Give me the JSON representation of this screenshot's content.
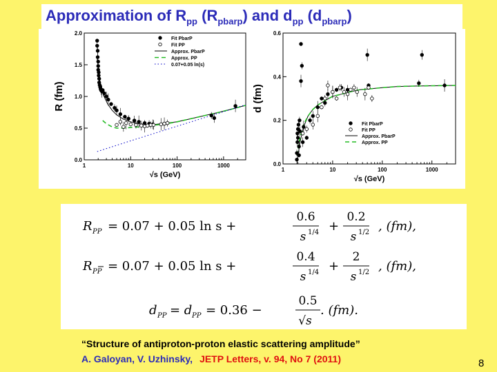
{
  "slide": {
    "title_prefix": "Approximation of R",
    "title_sub1": "pp",
    "title_mid1": " (R",
    "title_sub2": "pbarp",
    "title_mid2": ") and  d",
    "title_sub3": "pp",
    "title_mid3": " (d",
    "title_sub4": "pbarp",
    "title_end": ")",
    "caption": "“Structure of antiproton-proton elastic scattering amplitude”",
    "authors": "A. Galoyan, V. Uzhinsky,",
    "journal": "JETP Letters, v. 94, No 7 (2011)",
    "page_number": "8",
    "colors": {
      "background": "#fdf46b",
      "title": "#2b2bb8",
      "journal": "#e01010",
      "approx_pp": "#22bb22"
    }
  },
  "chart_data": [
    {
      "type": "scatter",
      "ylabel": "R (fm)",
      "xlabel": "√s  (GeV)",
      "x_scale": "log",
      "xlim": [
        1,
        3000
      ],
      "ylim": [
        0,
        2.0
      ],
      "x_ticks": [
        "1",
        "10",
        "100",
        "1000"
      ],
      "y_ticks": [
        "0.0",
        "0.5",
        "1.0",
        "1.5",
        "2.0"
      ],
      "legend_position": "top-right",
      "legend": [
        "Fit PbarP",
        "Fit PP",
        "Approx. PbarP",
        "Approx. PP",
        "0.07+0.05 ln(s)"
      ],
      "series": [
        {
          "name": "Fit PbarP",
          "marker": "filled-circle",
          "points": [
            [
              1.9,
              1.88
            ],
            [
              1.9,
              1.8
            ],
            [
              1.95,
              1.72
            ],
            [
              1.95,
              1.62
            ],
            [
              2.0,
              1.55
            ],
            [
              2.0,
              1.48
            ],
            [
              2.0,
              1.42
            ],
            [
              2.05,
              1.38
            ],
            [
              2.05,
              1.33
            ],
            [
              2.1,
              1.28
            ],
            [
              2.1,
              1.22
            ],
            [
              2.15,
              1.18
            ],
            [
              2.2,
              1.15
            ],
            [
              2.25,
              1.12
            ],
            [
              2.3,
              1.1
            ],
            [
              2.4,
              1.08
            ],
            [
              2.5,
              1.1
            ],
            [
              2.7,
              1.05
            ],
            [
              3.0,
              1.0
            ],
            [
              3.3,
              0.95
            ],
            [
              3.8,
              0.88
            ],
            [
              4.5,
              0.82
            ],
            [
              5.0,
              0.78
            ],
            [
              6.0,
              0.72
            ],
            [
              7.5,
              0.68
            ],
            [
              9.0,
              0.65
            ],
            [
              12.0,
              0.62
            ],
            [
              15.0,
              0.6
            ],
            [
              20.0,
              0.58
            ],
            [
              25.0,
              0.57
            ],
            [
              30.0,
              0.56
            ],
            [
              53.0,
              0.57
            ],
            [
              62.0,
              0.58
            ],
            [
              546.0,
              0.7
            ],
            [
              630.0,
              0.66
            ],
            [
              1800.0,
              0.85
            ]
          ]
        },
        {
          "name": "Fit PP",
          "marker": "open-circle",
          "points": [
            [
              5.0,
              0.55
            ],
            [
              6.0,
              0.6
            ],
            [
              7.0,
              0.52
            ],
            [
              8.0,
              0.58
            ],
            [
              10.0,
              0.56
            ],
            [
              13.0,
              0.55
            ],
            [
              17.0,
              0.54
            ],
            [
              20.0,
              0.53
            ],
            [
              23.0,
              0.54
            ],
            [
              27.0,
              0.55
            ],
            [
              31.0,
              0.55
            ],
            [
              45.0,
              0.56
            ],
            [
              53.0,
              0.57
            ],
            [
              62.0,
              0.58
            ]
          ]
        },
        {
          "name": "Approx. PbarP",
          "line": "solid",
          "x": [
            1.9,
            2.2,
            2.6,
            3.2,
            4,
            5,
            7,
            10,
            15,
            22,
            35,
            60,
            100,
            200,
            400,
            800,
            1500,
            3000
          ],
          "y": [
            1.6,
            1.22,
            1.02,
            0.88,
            0.78,
            0.71,
            0.64,
            0.6,
            0.57,
            0.56,
            0.56,
            0.58,
            0.6,
            0.65,
            0.7,
            0.75,
            0.8,
            0.86
          ]
        },
        {
          "name": "Approx. PP",
          "line": "dashed",
          "x": [
            2.5,
            3,
            4,
            5,
            7,
            10,
            15,
            22,
            35,
            60,
            100,
            200,
            400,
            800,
            1500,
            3000
          ],
          "y": [
            0.62,
            0.57,
            0.52,
            0.5,
            0.5,
            0.51,
            0.52,
            0.53,
            0.55,
            0.57,
            0.6,
            0.65,
            0.7,
            0.75,
            0.8,
            0.86
          ]
        },
        {
          "name": "0.07+0.05 ln(s)",
          "line": "dotted",
          "x": [
            1.9,
            10,
            100,
            1000,
            3000
          ],
          "y": [
            0.13,
            0.3,
            0.53,
            0.76,
            0.87
          ]
        }
      ]
    },
    {
      "type": "scatter",
      "ylabel": "d (fm)",
      "xlabel": "√s  (GeV)",
      "x_scale": "log",
      "xlim": [
        1,
        3000
      ],
      "ylim": [
        0,
        0.6
      ],
      "x_ticks": [
        "1",
        "10",
        "100",
        "1000"
      ],
      "y_ticks": [
        "0.0",
        "0.2",
        "0.4",
        "0.6"
      ],
      "legend_position": "bottom-right",
      "legend": [
        "Fit PbarP",
        "Fit PP",
        "Approx. PbarP",
        "Approx. PP"
      ],
      "series": [
        {
          "name": "Fit PbarP",
          "marker": "filled-circle",
          "points": [
            [
              1.9,
              0.02
            ],
            [
              1.9,
              0.05
            ],
            [
              1.95,
              0.1
            ],
            [
              1.95,
              0.14
            ],
            [
              2.0,
              0.16
            ],
            [
              2.0,
              0.12
            ],
            [
              2.05,
              0.18
            ],
            [
              2.1,
              0.08
            ],
            [
              2.1,
              0.04
            ],
            [
              2.15,
              0.2
            ],
            [
              2.2,
              0.15
            ],
            [
              2.3,
              0.38
            ],
            [
              2.3,
              0.55
            ],
            [
              2.4,
              0.45
            ],
            [
              2.5,
              0.1
            ],
            [
              2.6,
              0.17
            ],
            [
              3.0,
              0.12
            ],
            [
              3.5,
              0.2
            ],
            [
              4.0,
              0.22
            ],
            [
              5.0,
              0.26
            ],
            [
              6.0,
              0.3
            ],
            [
              7.0,
              0.28
            ],
            [
              8.0,
              0.32
            ],
            [
              10.0,
              0.33
            ],
            [
              12.0,
              0.34
            ],
            [
              15.0,
              0.35
            ],
            [
              20.0,
              0.34
            ],
            [
              50.0,
              0.5
            ],
            [
              53.0,
              0.36
            ],
            [
              546.0,
              0.37
            ],
            [
              630.0,
              0.5
            ],
            [
              1800.0,
              0.36
            ]
          ]
        },
        {
          "name": "Fit PP",
          "marker": "open-circle",
          "points": [
            [
              2.5,
              0.14
            ],
            [
              3.0,
              0.16
            ],
            [
              4.0,
              0.18
            ],
            [
              5.0,
              0.22
            ],
            [
              6.0,
              0.26
            ],
            [
              7.0,
              0.3
            ],
            [
              8.0,
              0.36
            ],
            [
              10.0,
              0.33
            ],
            [
              12.0,
              0.3
            ],
            [
              14.0,
              0.35
            ],
            [
              17.0,
              0.33
            ],
            [
              20.0,
              0.32
            ],
            [
              23.0,
              0.34
            ],
            [
              27.0,
              0.35
            ],
            [
              31.0,
              0.33
            ],
            [
              45.0,
              0.32
            ],
            [
              53.0,
              0.35
            ],
            [
              62.0,
              0.3
            ]
          ]
        },
        {
          "name": "Approx. PbarP",
          "line": "solid",
          "x": [
            1.9,
            2.2,
            2.6,
            3.2,
            4,
            5,
            7,
            10,
            15,
            22,
            35,
            60,
            100,
            200,
            400,
            800,
            1500,
            3000
          ],
          "y": [
            0.0,
            0.1,
            0.17,
            0.22,
            0.25,
            0.27,
            0.29,
            0.31,
            0.32,
            0.33,
            0.34,
            0.345,
            0.35,
            0.355,
            0.357,
            0.358,
            0.359,
            0.36
          ]
        },
        {
          "name": "Approx. PP",
          "line": "dashed",
          "x": [
            1.9,
            2.2,
            2.6,
            3.2,
            4,
            5,
            7,
            10,
            15,
            22,
            35,
            60,
            100,
            200,
            400,
            800,
            1500,
            3000
          ],
          "y": [
            0.04,
            0.12,
            0.18,
            0.22,
            0.25,
            0.27,
            0.29,
            0.31,
            0.32,
            0.33,
            0.34,
            0.345,
            0.35,
            0.355,
            0.357,
            0.358,
            0.359,
            0.36
          ]
        }
      ]
    }
  ],
  "formulas": [
    {
      "lhs": "R",
      "lhs_sub": "PP",
      "eq": " = 0.07 + 0.05 ln s + ",
      "n1": "0.6",
      "d1": "s",
      "e1": "1/4",
      "plus": "+",
      "n2": "0.2",
      "d2": "s",
      "e2": "1/2",
      "unit": ",     (fm),",
      "bar": false
    },
    {
      "lhs": "R",
      "lhs_sub": "PP",
      "eq": " = 0.07 + 0.05 ln s + ",
      "n1": "0.4",
      "d1": "s",
      "e1": "1/4",
      "plus": "+",
      "n2": "2",
      "d2": "s",
      "e2": "1/2",
      "unit": ",     (fm),",
      "bar": true
    },
    {
      "d_text": "d",
      "d_sub1": "PP",
      "eq1": " = d",
      "d_sub2": "PP",
      "eq2": " = 0.36 − ",
      "n": "0.5",
      "den": "√s",
      "unit": ".     (fm)."
    }
  ]
}
